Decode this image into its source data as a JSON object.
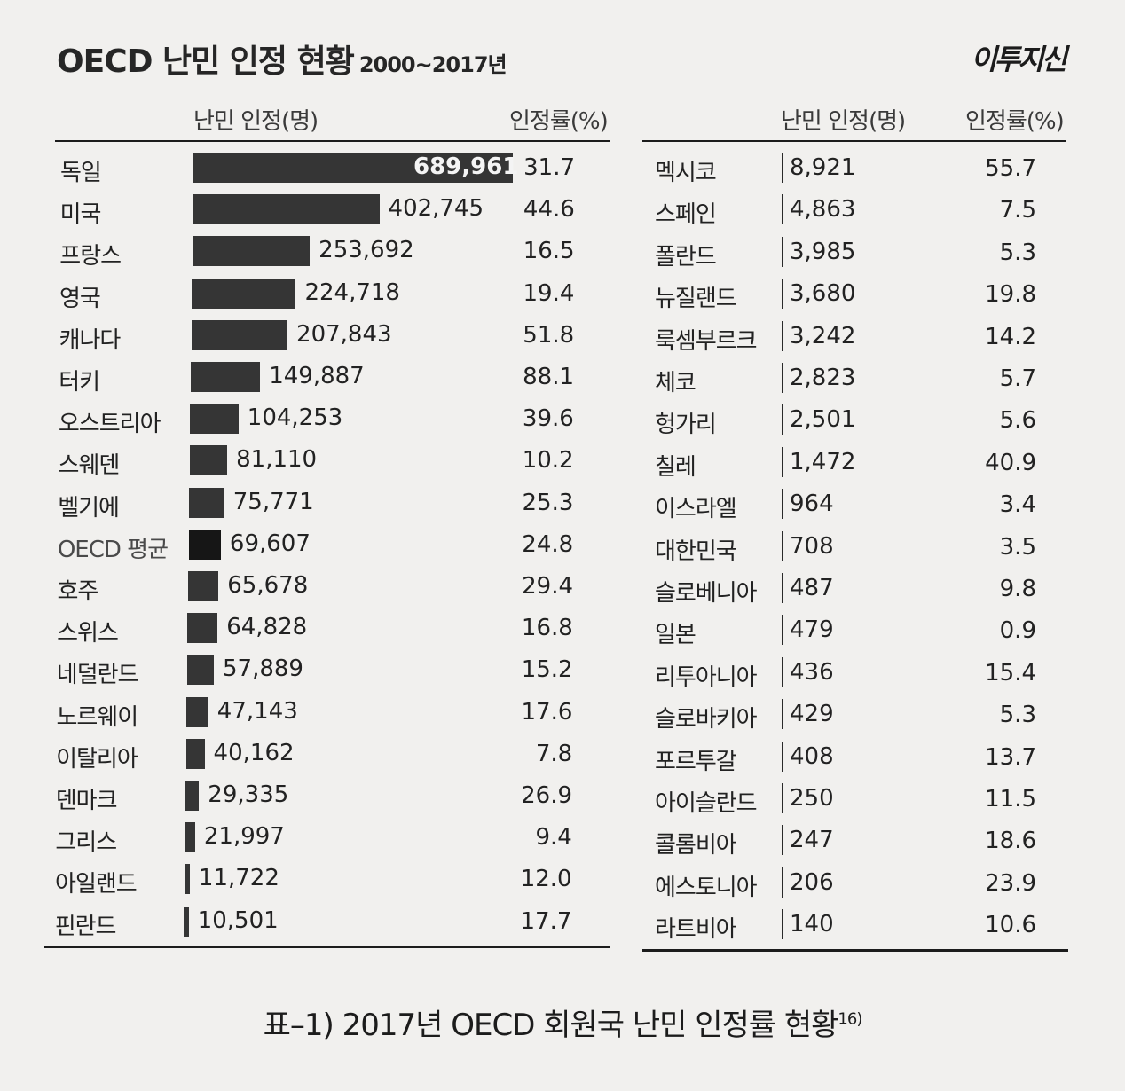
{
  "header": {
    "title": "OECD 난민 인정 현황",
    "subtitle": "2000~2017년",
    "logo": "이투지신"
  },
  "chart_data": {
    "type": "bar",
    "title": "OECD 난민 인정 현황 2000~2017년",
    "columns": {
      "count": "난민 인정(명)",
      "rate": "인정률(%)"
    },
    "highlight": "OECD 평균",
    "left_table": [
      {
        "country": "독일",
        "count": 689961,
        "count_label": "689,961",
        "rate": "31.7"
      },
      {
        "country": "미국",
        "count": 402745,
        "count_label": "402,745",
        "rate": "44.6"
      },
      {
        "country": "프랑스",
        "count": 253692,
        "count_label": "253,692",
        "rate": "16.5"
      },
      {
        "country": "영국",
        "count": 224718,
        "count_label": "224,718",
        "rate": "19.4"
      },
      {
        "country": "캐나다",
        "count": 207843,
        "count_label": "207,843",
        "rate": "51.8"
      },
      {
        "country": "터키",
        "count": 149887,
        "count_label": "149,887",
        "rate": "88.1"
      },
      {
        "country": "오스트리아",
        "count": 104253,
        "count_label": "104,253",
        "rate": "39.6"
      },
      {
        "country": "스웨덴",
        "count": 81110,
        "count_label": "81,110",
        "rate": "10.2"
      },
      {
        "country": "벨기에",
        "count": 75771,
        "count_label": "75,771",
        "rate": "25.3"
      },
      {
        "country": "OECD 평균",
        "count": 69607,
        "count_label": "69,607",
        "rate": "24.8"
      },
      {
        "country": "호주",
        "count": 65678,
        "count_label": "65,678",
        "rate": "29.4"
      },
      {
        "country": "스위스",
        "count": 64828,
        "count_label": "64,828",
        "rate": "16.8"
      },
      {
        "country": "네덜란드",
        "count": 57889,
        "count_label": "57,889",
        "rate": "15.2"
      },
      {
        "country": "노르웨이",
        "count": 47143,
        "count_label": "47,143",
        "rate": "17.6"
      },
      {
        "country": "이탈리아",
        "count": 40162,
        "count_label": "40,162",
        "rate": "7.8"
      },
      {
        "country": "덴마크",
        "count": 29335,
        "count_label": "29,335",
        "rate": "26.9"
      },
      {
        "country": "그리스",
        "count": 21997,
        "count_label": "21,997",
        "rate": "9.4"
      },
      {
        "country": "아일랜드",
        "count": 11722,
        "count_label": "11,722",
        "rate": "12.0"
      },
      {
        "country": "핀란드",
        "count": 10501,
        "count_label": "10,501",
        "rate": "17.7"
      }
    ],
    "right_table": [
      {
        "country": "멕시코",
        "count": 8921,
        "count_label": "8,921",
        "rate": "55.7"
      },
      {
        "country": "스페인",
        "count": 4863,
        "count_label": "4,863",
        "rate": "7.5"
      },
      {
        "country": "폴란드",
        "count": 3985,
        "count_label": "3,985",
        "rate": "5.3"
      },
      {
        "country": "뉴질랜드",
        "count": 3680,
        "count_label": "3,680",
        "rate": "19.8"
      },
      {
        "country": "룩셈부르크",
        "count": 3242,
        "count_label": "3,242",
        "rate": "14.2"
      },
      {
        "country": "체코",
        "count": 2823,
        "count_label": "2,823",
        "rate": "5.7"
      },
      {
        "country": "헝가리",
        "count": 2501,
        "count_label": "2,501",
        "rate": "5.6"
      },
      {
        "country": "칠레",
        "count": 1472,
        "count_label": "1,472",
        "rate": "40.9"
      },
      {
        "country": "이스라엘",
        "count": 964,
        "count_label": "964",
        "rate": "3.4"
      },
      {
        "country": "대한민국",
        "count": 708,
        "count_label": "708",
        "rate": "3.5"
      },
      {
        "country": "슬로베니아",
        "count": 487,
        "count_label": "487",
        "rate": "9.8"
      },
      {
        "country": "일본",
        "count": 479,
        "count_label": "479",
        "rate": "0.9"
      },
      {
        "country": "리투아니아",
        "count": 436,
        "count_label": "436",
        "rate": "15.4"
      },
      {
        "country": "슬로바키아",
        "count": 429,
        "count_label": "429",
        "rate": "5.3"
      },
      {
        "country": "포르투갈",
        "count": 408,
        "count_label": "408",
        "rate": "13.7"
      },
      {
        "country": "아이슬란드",
        "count": 250,
        "count_label": "250",
        "rate": "11.5"
      },
      {
        "country": "콜롬비아",
        "count": 247,
        "count_label": "247",
        "rate": "18.6"
      },
      {
        "country": "에스토니아",
        "count": 206,
        "count_label": "206",
        "rate": "23.9"
      },
      {
        "country": "라트비아",
        "count": 140,
        "count_label": "140",
        "rate": "10.6"
      }
    ]
  },
  "caption": {
    "text": "표–1) 2017년 OECD 회원국 난민 인정률 현황",
    "footnote": "16)"
  }
}
